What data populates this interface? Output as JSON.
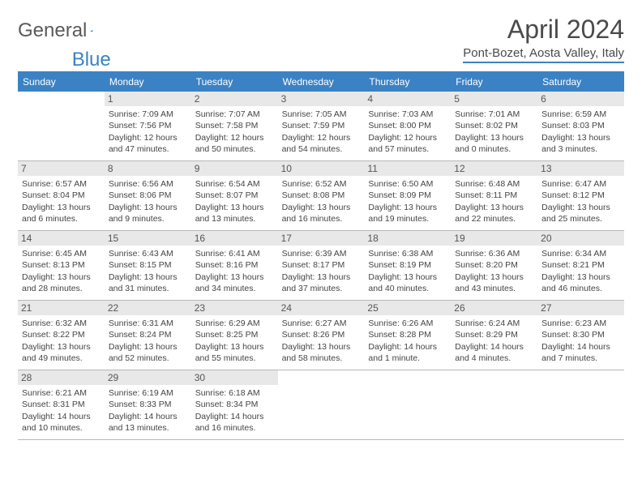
{
  "logo": {
    "text1": "General",
    "text2": "Blue"
  },
  "title": "April 2024",
  "location": "Pont-Bozet, Aosta Valley, Italy",
  "colors": {
    "header_bg": "#3b82c4",
    "header_text": "#ffffff",
    "daynum_bg": "#e8e8e8",
    "border": "#b8b8b8",
    "text": "#444444"
  },
  "day_headers": [
    "Sunday",
    "Monday",
    "Tuesday",
    "Wednesday",
    "Thursday",
    "Friday",
    "Saturday"
  ],
  "weeks": [
    [
      {
        "n": "",
        "empty": true
      },
      {
        "n": "1",
        "sunrise": "7:09 AM",
        "sunset": "7:56 PM",
        "daylight": "12 hours and 47 minutes."
      },
      {
        "n": "2",
        "sunrise": "7:07 AM",
        "sunset": "7:58 PM",
        "daylight": "12 hours and 50 minutes."
      },
      {
        "n": "3",
        "sunrise": "7:05 AM",
        "sunset": "7:59 PM",
        "daylight": "12 hours and 54 minutes."
      },
      {
        "n": "4",
        "sunrise": "7:03 AM",
        "sunset": "8:00 PM",
        "daylight": "12 hours and 57 minutes."
      },
      {
        "n": "5",
        "sunrise": "7:01 AM",
        "sunset": "8:02 PM",
        "daylight": "13 hours and 0 minutes."
      },
      {
        "n": "6",
        "sunrise": "6:59 AM",
        "sunset": "8:03 PM",
        "daylight": "13 hours and 3 minutes."
      }
    ],
    [
      {
        "n": "7",
        "sunrise": "6:57 AM",
        "sunset": "8:04 PM",
        "daylight": "13 hours and 6 minutes."
      },
      {
        "n": "8",
        "sunrise": "6:56 AM",
        "sunset": "8:06 PM",
        "daylight": "13 hours and 9 minutes."
      },
      {
        "n": "9",
        "sunrise": "6:54 AM",
        "sunset": "8:07 PM",
        "daylight": "13 hours and 13 minutes."
      },
      {
        "n": "10",
        "sunrise": "6:52 AM",
        "sunset": "8:08 PM",
        "daylight": "13 hours and 16 minutes."
      },
      {
        "n": "11",
        "sunrise": "6:50 AM",
        "sunset": "8:09 PM",
        "daylight": "13 hours and 19 minutes."
      },
      {
        "n": "12",
        "sunrise": "6:48 AM",
        "sunset": "8:11 PM",
        "daylight": "13 hours and 22 minutes."
      },
      {
        "n": "13",
        "sunrise": "6:47 AM",
        "sunset": "8:12 PM",
        "daylight": "13 hours and 25 minutes."
      }
    ],
    [
      {
        "n": "14",
        "sunrise": "6:45 AM",
        "sunset": "8:13 PM",
        "daylight": "13 hours and 28 minutes."
      },
      {
        "n": "15",
        "sunrise": "6:43 AM",
        "sunset": "8:15 PM",
        "daylight": "13 hours and 31 minutes."
      },
      {
        "n": "16",
        "sunrise": "6:41 AM",
        "sunset": "8:16 PM",
        "daylight": "13 hours and 34 minutes."
      },
      {
        "n": "17",
        "sunrise": "6:39 AM",
        "sunset": "8:17 PM",
        "daylight": "13 hours and 37 minutes."
      },
      {
        "n": "18",
        "sunrise": "6:38 AM",
        "sunset": "8:19 PM",
        "daylight": "13 hours and 40 minutes."
      },
      {
        "n": "19",
        "sunrise": "6:36 AM",
        "sunset": "8:20 PM",
        "daylight": "13 hours and 43 minutes."
      },
      {
        "n": "20",
        "sunrise": "6:34 AM",
        "sunset": "8:21 PM",
        "daylight": "13 hours and 46 minutes."
      }
    ],
    [
      {
        "n": "21",
        "sunrise": "6:32 AM",
        "sunset": "8:22 PM",
        "daylight": "13 hours and 49 minutes."
      },
      {
        "n": "22",
        "sunrise": "6:31 AM",
        "sunset": "8:24 PM",
        "daylight": "13 hours and 52 minutes."
      },
      {
        "n": "23",
        "sunrise": "6:29 AM",
        "sunset": "8:25 PM",
        "daylight": "13 hours and 55 minutes."
      },
      {
        "n": "24",
        "sunrise": "6:27 AM",
        "sunset": "8:26 PM",
        "daylight": "13 hours and 58 minutes."
      },
      {
        "n": "25",
        "sunrise": "6:26 AM",
        "sunset": "8:28 PM",
        "daylight": "14 hours and 1 minute."
      },
      {
        "n": "26",
        "sunrise": "6:24 AM",
        "sunset": "8:29 PM",
        "daylight": "14 hours and 4 minutes."
      },
      {
        "n": "27",
        "sunrise": "6:23 AM",
        "sunset": "8:30 PM",
        "daylight": "14 hours and 7 minutes."
      }
    ],
    [
      {
        "n": "28",
        "sunrise": "6:21 AM",
        "sunset": "8:31 PM",
        "daylight": "14 hours and 10 minutes."
      },
      {
        "n": "29",
        "sunrise": "6:19 AM",
        "sunset": "8:33 PM",
        "daylight": "14 hours and 13 minutes."
      },
      {
        "n": "30",
        "sunrise": "6:18 AM",
        "sunset": "8:34 PM",
        "daylight": "14 hours and 16 minutes."
      },
      {
        "n": "",
        "empty": true
      },
      {
        "n": "",
        "empty": true
      },
      {
        "n": "",
        "empty": true
      },
      {
        "n": "",
        "empty": true
      }
    ]
  ],
  "labels": {
    "sunrise": "Sunrise:",
    "sunset": "Sunset:",
    "daylight": "Daylight:"
  }
}
